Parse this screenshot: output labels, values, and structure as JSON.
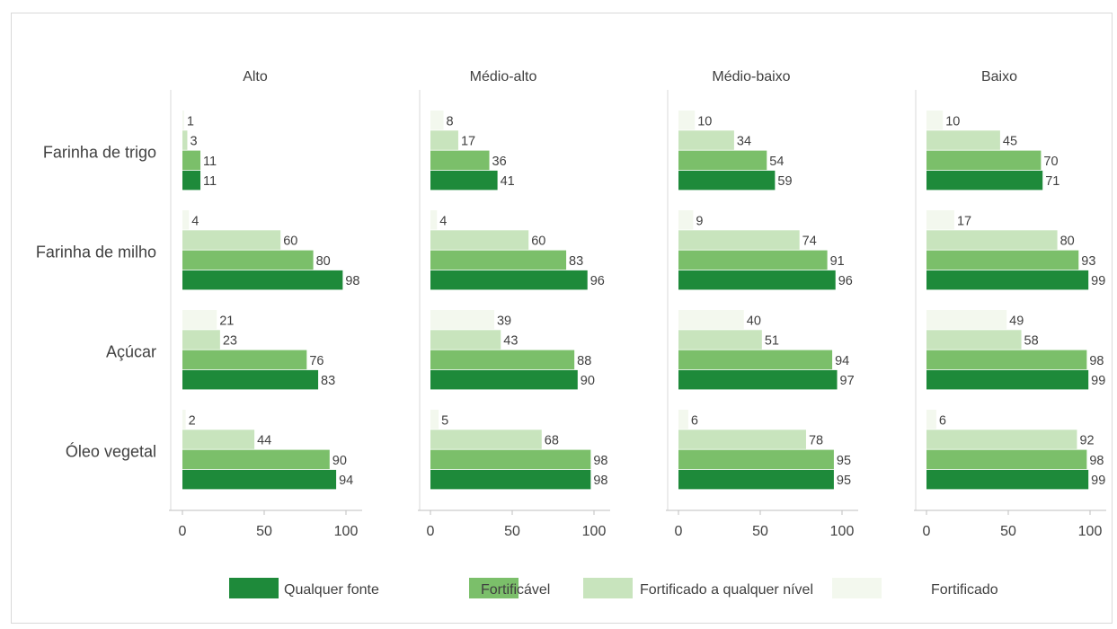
{
  "chart_data": {
    "type": "bar",
    "orientation": "horizontal",
    "title": "",
    "xlabel": "",
    "ylabel": "",
    "xlim": [
      0,
      100
    ],
    "x_ticks": [
      "0",
      "50",
      "100"
    ],
    "grid": false,
    "legend_position": "bottom",
    "colors": {
      "Qualquer fonte": "#1e8a3a",
      "Fortificável": "#7bbf6a",
      "Fortificado a qualquer nível": "#c8e4bd",
      "Fortificado": "#f3f8ee"
    },
    "panels": [
      "Alto",
      "Médio-alto",
      "Médio-baixo",
      "Baixo"
    ],
    "categories": [
      "Farinha de trigo",
      "Farinha de milho",
      "Açúcar",
      "Óleo vegetal"
    ],
    "series_order_top_to_bottom": [
      "Fortificado",
      "Fortificado a qualquer nível",
      "Fortificável",
      "Qualquer fonte"
    ],
    "legend": [
      "Qualquer fonte",
      "Fortificável",
      "Fortificado a qualquer nível",
      "Fortificado"
    ],
    "values": {
      "Alto": {
        "Farinha de trigo": {
          "Fortificado": 1,
          "Fortificado a qualquer nível": 3,
          "Fortificável": 11,
          "Qualquer fonte": 11
        },
        "Farinha de milho": {
          "Fortificado": 4,
          "Fortificado a qualquer nível": 60,
          "Fortificável": 80,
          "Qualquer fonte": 98
        },
        "Açúcar": {
          "Fortificado": 21,
          "Fortificado a qualquer nível": 23,
          "Fortificável": 76,
          "Qualquer fonte": 83
        },
        "Óleo vegetal": {
          "Fortificado": 2,
          "Fortificado a qualquer nível": 44,
          "Fortificável": 90,
          "Qualquer fonte": 94
        }
      },
      "Médio-alto": {
        "Farinha de trigo": {
          "Fortificado": 8,
          "Fortificado a qualquer nível": 17,
          "Fortificável": 36,
          "Qualquer fonte": 41
        },
        "Farinha de milho": {
          "Fortificado": 4,
          "Fortificado a qualquer nível": 60,
          "Fortificável": 83,
          "Qualquer fonte": 96
        },
        "Açúcar": {
          "Fortificado": 39,
          "Fortificado a qualquer nível": 43,
          "Fortificável": 88,
          "Qualquer fonte": 90
        },
        "Óleo vegetal": {
          "Fortificado": 5,
          "Fortificado a qualquer nível": 68,
          "Fortificável": 98,
          "Qualquer fonte": 98
        }
      },
      "Médio-baixo": {
        "Farinha de trigo": {
          "Fortificado": 10,
          "Fortificado a qualquer nível": 34,
          "Fortificável": 54,
          "Qualquer fonte": 59
        },
        "Farinha de milho": {
          "Fortificado": 9,
          "Fortificado a qualquer nível": 74,
          "Fortificável": 91,
          "Qualquer fonte": 96
        },
        "Açúcar": {
          "Fortificado": 40,
          "Fortificado a qualquer nível": 51,
          "Fortificável": 94,
          "Qualquer fonte": 97
        },
        "Óleo vegetal": {
          "Fortificado": 6,
          "Fortificado a qualquer nível": 78,
          "Fortificável": 95,
          "Qualquer fonte": 95
        }
      },
      "Baixo": {
        "Farinha de trigo": {
          "Fortificado": 10,
          "Fortificado a qualquer nível": 45,
          "Fortificável": 70,
          "Qualquer fonte": 71
        },
        "Farinha de milho": {
          "Fortificado": 17,
          "Fortificado a qualquer nível": 80,
          "Fortificável": 93,
          "Qualquer fonte": 99
        },
        "Açúcar": {
          "Fortificado": 49,
          "Fortificado a qualquer nível": 58,
          "Fortificável": 98,
          "Qualquer fonte": 99
        },
        "Óleo vegetal": {
          "Fortificado": 6,
          "Fortificado a qualquer nível": 92,
          "Fortificável": 98,
          "Qualquer fonte": 99
        }
      }
    }
  }
}
